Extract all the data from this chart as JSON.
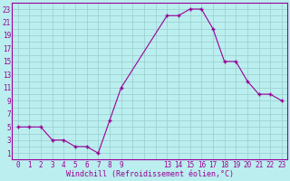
{
  "x": [
    0,
    1,
    2,
    3,
    4,
    5,
    6,
    7,
    8,
    9,
    13,
    14,
    15,
    16,
    17,
    18,
    19,
    20,
    21,
    22,
    23
  ],
  "y": [
    5,
    5,
    5,
    3,
    3,
    2,
    2,
    1,
    6,
    11,
    22,
    22,
    23,
    23,
    20,
    15,
    15,
    12,
    10,
    10,
    9
  ],
  "line_color": "#990099",
  "marker_color": "#990099",
  "bg_color": "#bbeeee",
  "grid_color": "#99cccc",
  "xlabel": "Windchill (Refroidissement éolien,°C)",
  "xlabel_color": "#990099",
  "xticks": [
    0,
    1,
    2,
    3,
    4,
    5,
    6,
    7,
    8,
    9,
    13,
    14,
    15,
    16,
    17,
    18,
    19,
    20,
    21,
    22,
    23
  ],
  "yticks": [
    1,
    3,
    5,
    7,
    9,
    11,
    13,
    15,
    17,
    19,
    21,
    23
  ],
  "ylim": [
    0,
    24
  ],
  "xlim": [
    -0.5,
    23.5
  ],
  "tick_color": "#990099",
  "spine_color": "#990099",
  "tick_fontsize": 5.5,
  "xlabel_fontsize": 6.0
}
